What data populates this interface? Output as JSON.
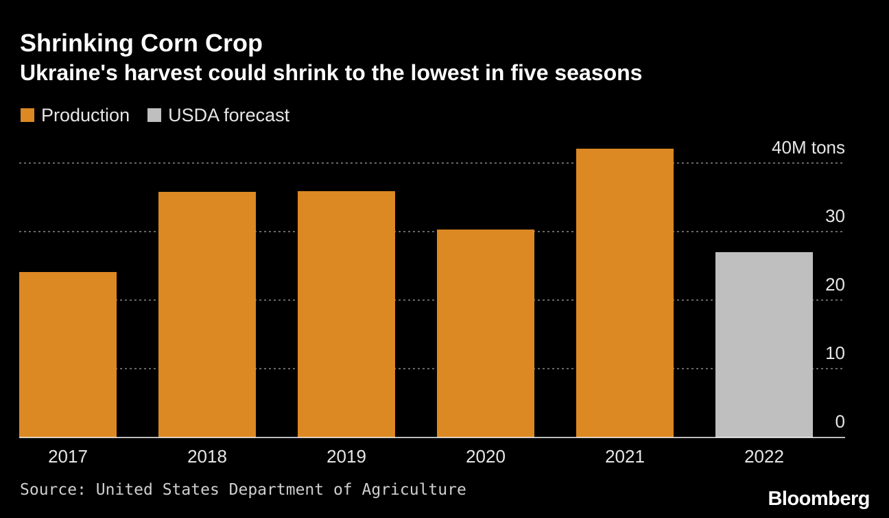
{
  "colors": {
    "background": "#000000",
    "production": "#dc8823",
    "forecast": "#bfbfbf",
    "gridline": "#8a8a8a",
    "tick_text": "#e6e6e6"
  },
  "chart_data": {
    "type": "bar",
    "title": "Shrinking Corn Crop",
    "subtitle": "Ukraine's harvest could shrink to the lowest in five seasons",
    "categories": [
      "2017",
      "2018",
      "2019",
      "2020",
      "2021",
      "2022"
    ],
    "series": [
      {
        "name": "Production",
        "color": "#dc8823",
        "values": [
          24.1,
          35.8,
          35.9,
          30.3,
          42.1,
          null
        ]
      },
      {
        "name": "USDA forecast",
        "color": "#bfbfbf",
        "values": [
          null,
          null,
          null,
          null,
          null,
          27.0
        ]
      }
    ],
    "y_ticks": [
      {
        "value": 0,
        "label": "0"
      },
      {
        "value": 10,
        "label": "10"
      },
      {
        "value": 20,
        "label": "20"
      },
      {
        "value": 30,
        "label": "30"
      },
      {
        "value": 40,
        "label": "40M tons"
      }
    ],
    "ylim": [
      0,
      40
    ],
    "xlabel": "",
    "ylabel": "",
    "y_axis_position": "right",
    "grid": "horizontal dotted",
    "legend_position": "top-left",
    "source": "Source: United States Department of Agriculture",
    "logo": "Bloomberg"
  }
}
